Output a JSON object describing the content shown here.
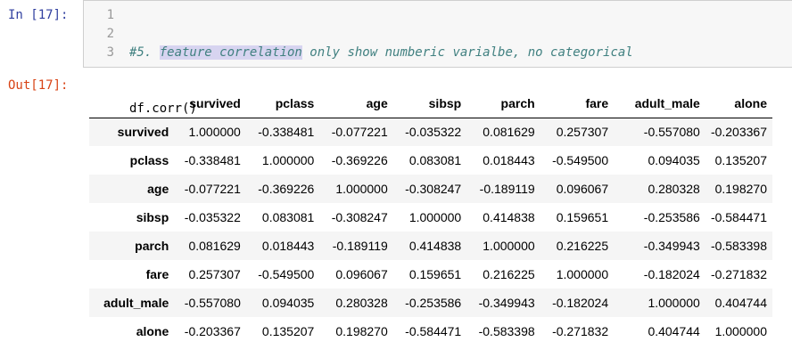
{
  "input": {
    "prompt": "In [17]:",
    "line_numbers": [
      "1",
      "2",
      "3"
    ],
    "comment_hash": "#5. ",
    "comment_selected": "feature correlation",
    "comment_rest": " only show numberic varialbe, no categorical",
    "code_line_2": "df.corr()",
    "code_line_3": ""
  },
  "output": {
    "prompt": "Out[17]:",
    "columns": [
      "survived",
      "pclass",
      "age",
      "sibsp",
      "parch",
      "fare",
      "adult_male",
      "alone"
    ],
    "rows": [
      {
        "label": "survived",
        "values": [
          "1.000000",
          "-0.338481",
          "-0.077221",
          "-0.035322",
          "0.081629",
          "0.257307",
          "-0.557080",
          "-0.203367"
        ]
      },
      {
        "label": "pclass",
        "values": [
          "-0.338481",
          "1.000000",
          "-0.369226",
          "0.083081",
          "0.018443",
          "-0.549500",
          "0.094035",
          "0.135207"
        ]
      },
      {
        "label": "age",
        "values": [
          "-0.077221",
          "-0.369226",
          "1.000000",
          "-0.308247",
          "-0.189119",
          "0.096067",
          "0.280328",
          "0.198270"
        ]
      },
      {
        "label": "sibsp",
        "values": [
          "-0.035322",
          "0.083081",
          "-0.308247",
          "1.000000",
          "0.414838",
          "0.159651",
          "-0.253586",
          "-0.584471"
        ]
      },
      {
        "label": "parch",
        "values": [
          "0.081629",
          "0.018443",
          "-0.189119",
          "0.414838",
          "1.000000",
          "0.216225",
          "-0.349943",
          "-0.583398"
        ]
      },
      {
        "label": "fare",
        "values": [
          "0.257307",
          "-0.549500",
          "0.096067",
          "0.159651",
          "0.216225",
          "1.000000",
          "-0.182024",
          "-0.271832"
        ]
      },
      {
        "label": "adult_male",
        "values": [
          "-0.557080",
          "0.094035",
          "0.280328",
          "-0.253586",
          "-0.349943",
          "-0.182024",
          "1.000000",
          "0.404744"
        ]
      },
      {
        "label": "alone",
        "values": [
          "-0.203367",
          "0.135207",
          "0.198270",
          "-0.584471",
          "-0.583398",
          "-0.271832",
          "0.404744",
          "1.000000"
        ]
      }
    ]
  },
  "colors": {
    "in_prompt": "#303f9f",
    "out_prompt": "#d84315",
    "comment": "#408080",
    "selection": "#d7d4f0",
    "cell_bg": "#f7f7f7",
    "row_stripe": "#f5f5f5"
  }
}
